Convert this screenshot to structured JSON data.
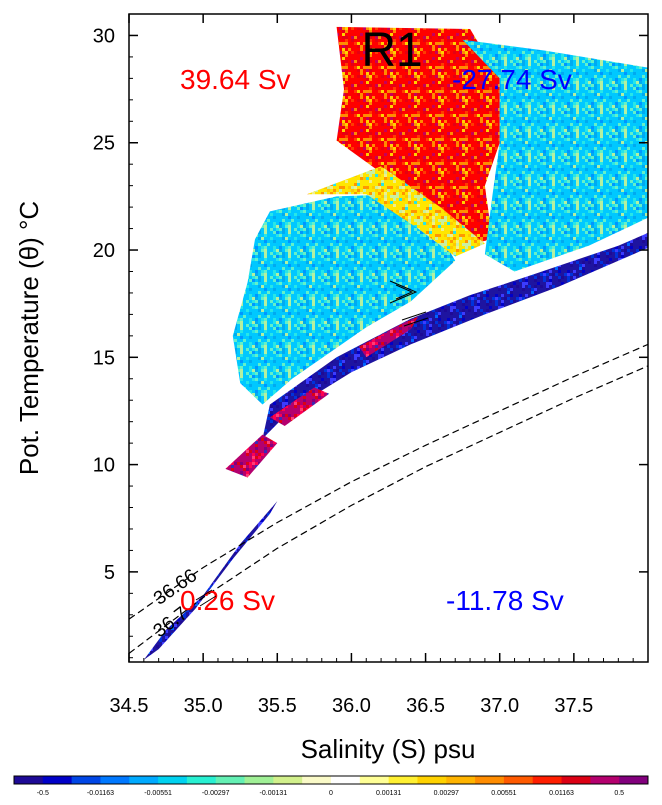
{
  "chart_data": {
    "type": "heatmap",
    "title": "R1",
    "xlabel": "Salinity (S) psu",
    "ylabel": "Pot. Temperature (θ) °C",
    "xlim": [
      34.5,
      38.0
    ],
    "ylim": [
      0.8,
      31.0
    ],
    "x_ticks": [
      34.5,
      35.0,
      35.5,
      36.0,
      36.5,
      37.0,
      37.5
    ],
    "x_tick_labels": [
      "34.5",
      "35.0",
      "35.5",
      "36.0",
      "36.5",
      "37.0",
      "37.5"
    ],
    "y_ticks": [
      5,
      10,
      15,
      20,
      25,
      30
    ],
    "y_tick_labels": [
      "5",
      "10",
      "15",
      "20",
      "25",
      "30"
    ],
    "transports": [
      {
        "label": "39.64 Sv",
        "color": "#ff0000",
        "position": "top-left"
      },
      {
        "label": "-27.74 Sv",
        "color": "#0000ff",
        "position": "top-right"
      },
      {
        "label": "0.26 Sv",
        "color": "#ff0000",
        "position": "bottom-left"
      },
      {
        "label": "-11.78 Sv",
        "color": "#0000ff",
        "position": "bottom-right"
      }
    ],
    "density_contours": [
      {
        "label": "36.66",
        "points": [
          [
            34.5,
            2.8
          ],
          [
            35.0,
            5.2
          ],
          [
            35.5,
            7.3
          ],
          [
            36.0,
            9.2
          ],
          [
            36.5,
            10.9
          ],
          [
            37.0,
            12.5
          ],
          [
            37.5,
            14.1
          ],
          [
            38.0,
            15.6
          ]
        ]
      },
      {
        "label": "36.7",
        "points": [
          [
            34.5,
            1.2
          ],
          [
            35.0,
            3.8
          ],
          [
            35.5,
            6.1
          ],
          [
            36.0,
            8.1
          ],
          [
            36.5,
            9.9
          ],
          [
            37.0,
            11.5
          ],
          [
            37.5,
            13.1
          ],
          [
            38.0,
            14.6
          ]
        ]
      }
    ],
    "colorbar": {
      "labels": [
        "-0.5",
        "-0.01163",
        "-0.00551",
        "-0.00297",
        "-0.00131",
        "0",
        "0.00131",
        "0.00297",
        "0.00551",
        "0.01163",
        "0.5"
      ],
      "colors": [
        "#1e0a96",
        "#0000c8",
        "#0046e6",
        "#0078ff",
        "#00aaff",
        "#00d2f0",
        "#28f0d2",
        "#64f0b4",
        "#a0f096",
        "#d2f08c",
        "#fafac8",
        "#ffffff",
        "#ffff96",
        "#fff032",
        "#ffd200",
        "#ffb400",
        "#ff8c00",
        "#ff5a00",
        "#ff1e00",
        "#dc0014",
        "#b4006e",
        "#82007d"
      ]
    },
    "regions": [
      {
        "name": "warm-red-core",
        "kind": "red",
        "poly": [
          [
            35.9,
            30.4
          ],
          [
            36.8,
            30.3
          ],
          [
            37.0,
            28.0
          ],
          [
            37.0,
            25.0
          ],
          [
            36.9,
            23.0
          ],
          [
            36.95,
            20.5
          ],
          [
            36.75,
            20.2
          ],
          [
            36.55,
            21.3
          ],
          [
            36.2,
            23.6
          ],
          [
            35.9,
            25.1
          ],
          [
            35.95,
            27.5
          ]
        ]
      },
      {
        "name": "upper-right-cyan",
        "kind": "cyan",
        "poly": [
          [
            36.75,
            29.8
          ],
          [
            37.3,
            29.3
          ],
          [
            38.0,
            28.5
          ],
          [
            38.0,
            21.5
          ],
          [
            37.6,
            20.2
          ],
          [
            37.1,
            19.0
          ],
          [
            36.9,
            19.8
          ],
          [
            36.95,
            22.5
          ],
          [
            37.0,
            25.0
          ],
          [
            37.0,
            28.0
          ]
        ]
      },
      {
        "name": "main-cyan-body",
        "kind": "cyan",
        "poly": [
          [
            35.45,
            21.8
          ],
          [
            35.9,
            22.5
          ],
          [
            36.3,
            22.6
          ],
          [
            36.55,
            21.3
          ],
          [
            36.7,
            19.5
          ],
          [
            36.4,
            17.6
          ],
          [
            36.1,
            16.4
          ],
          [
            35.85,
            15.2
          ],
          [
            35.6,
            14.0
          ],
          [
            35.4,
            12.8
          ],
          [
            35.25,
            13.8
          ],
          [
            35.2,
            16.0
          ],
          [
            35.3,
            18.5
          ],
          [
            35.35,
            20.5
          ]
        ]
      },
      {
        "name": "yellow-band",
        "kind": "yellow",
        "poly": [
          [
            35.7,
            22.6
          ],
          [
            36.2,
            23.9
          ],
          [
            36.6,
            22.0
          ],
          [
            36.9,
            20.3
          ],
          [
            36.7,
            19.7
          ],
          [
            36.45,
            21.0
          ],
          [
            36.1,
            22.6
          ]
        ]
      },
      {
        "name": "blue-lower-edge",
        "kind": "blue",
        "poly": [
          [
            35.45,
            12.8
          ],
          [
            35.9,
            15.0
          ],
          [
            36.4,
            16.8
          ],
          [
            36.8,
            17.9
          ],
          [
            37.2,
            18.8
          ],
          [
            37.8,
            20.2
          ],
          [
            38.0,
            20.8
          ],
          [
            38.0,
            20.1
          ],
          [
            37.4,
            18.3
          ],
          [
            36.9,
            17.0
          ],
          [
            36.4,
            15.6
          ],
          [
            36.0,
            14.3
          ],
          [
            35.6,
            12.6
          ],
          [
            35.4,
            11.2
          ]
        ]
      },
      {
        "name": "magenta-streak-upper",
        "kind": "magenta",
        "poly": [
          [
            36.05,
            15.5
          ],
          [
            36.35,
            16.6
          ],
          [
            36.45,
            16.9
          ],
          [
            36.4,
            16.3
          ],
          [
            36.1,
            15.0
          ]
        ]
      },
      {
        "name": "magenta-streak-lower",
        "kind": "magenta",
        "poly": [
          [
            35.45,
            12.2
          ],
          [
            35.75,
            13.6
          ],
          [
            35.85,
            13.3
          ],
          [
            35.55,
            11.8
          ]
        ]
      },
      {
        "name": "magenta-low",
        "kind": "magenta",
        "poly": [
          [
            35.15,
            9.8
          ],
          [
            35.4,
            11.4
          ],
          [
            35.5,
            11.0
          ],
          [
            35.3,
            9.4
          ]
        ]
      },
      {
        "name": "low-tail-blue",
        "kind": "blue",
        "poly": [
          [
            34.6,
            0.9
          ],
          [
            34.75,
            2.3
          ],
          [
            35.0,
            3.9
          ],
          [
            35.25,
            6.3
          ],
          [
            35.5,
            8.3
          ],
          [
            35.45,
            7.7
          ],
          [
            35.2,
            5.6
          ],
          [
            34.95,
            3.3
          ],
          [
            34.7,
            1.4
          ]
        ]
      }
    ]
  }
}
